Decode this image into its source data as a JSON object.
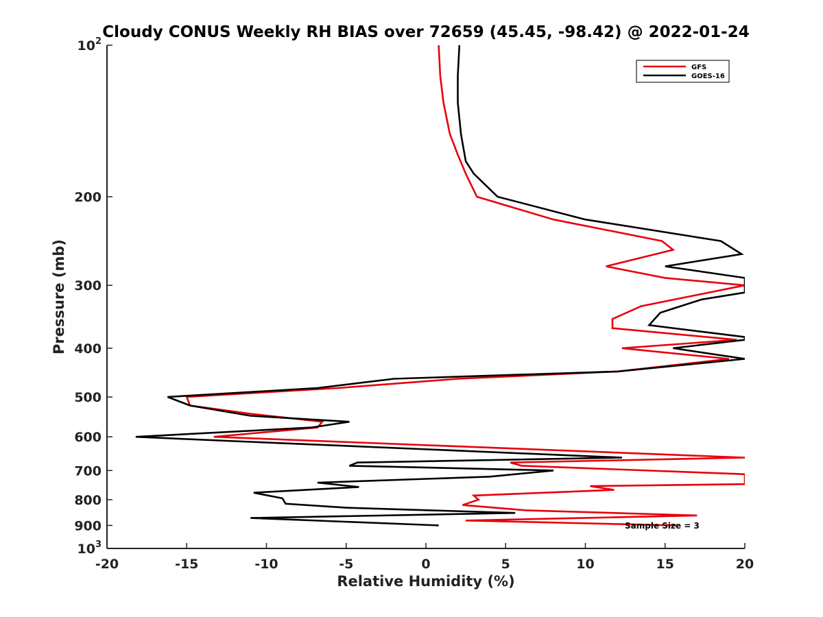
{
  "chart_data": {
    "type": "line",
    "title": "Cloudy CONUS Weekly RH BIAS over 72659 (45.45, -98.42) @ 2022-01-24",
    "xlabel": "Relative Humidity (%)",
    "ylabel": "Pressure (mb)",
    "xlim": [
      -20,
      20
    ],
    "ylim": [
      100,
      1000
    ],
    "y_scale": "log",
    "y_reversed": true,
    "x_ticks": [
      "-20",
      "-15",
      "-10",
      "-5",
      "0",
      "5",
      "10",
      "15",
      "20"
    ],
    "y_ticks": [
      {
        "value": 100,
        "base": "10",
        "exp": "2"
      },
      {
        "value": 200,
        "label": "200"
      },
      {
        "value": 300,
        "label": "300"
      },
      {
        "value": 400,
        "label": "400"
      },
      {
        "value": 500,
        "label": "500"
      },
      {
        "value": 600,
        "label": "600"
      },
      {
        "value": 700,
        "label": "700"
      },
      {
        "value": 800,
        "label": "800"
      },
      {
        "value": 900,
        "label": "900"
      },
      {
        "value": 1000,
        "base": "10",
        "exp": "3"
      }
    ],
    "grid": false,
    "legend_position": "top-right",
    "annotation": "Sample Size = 3",
    "series": [
      {
        "name": "GFS",
        "color": "#e8000b",
        "points": [
          [
            0.8,
            100
          ],
          [
            0.9,
            115
          ],
          [
            1.1,
            130
          ],
          [
            1.5,
            150
          ],
          [
            2.0,
            165
          ],
          [
            2.5,
            180
          ],
          [
            3.2,
            200
          ],
          [
            8.0,
            222
          ],
          [
            14.8,
            245
          ],
          [
            15.5,
            255
          ],
          [
            11.3,
            275
          ],
          [
            15.0,
            290
          ],
          [
            20,
            300
          ],
          [
            13.5,
            330
          ],
          [
            11.7,
            350
          ],
          [
            11.7,
            365
          ],
          [
            19.5,
            385
          ],
          [
            12.3,
            400
          ],
          [
            19.0,
            420
          ],
          [
            12.0,
            445
          ],
          [
            2.0,
            460
          ],
          [
            -5.5,
            480
          ],
          [
            -15.0,
            500
          ],
          [
            -14.8,
            520
          ],
          [
            -11.0,
            540
          ],
          [
            -6.5,
            560
          ],
          [
            -6.8,
            575
          ],
          [
            -13.3,
            600
          ],
          [
            20,
            660
          ],
          [
            5.3,
            675
          ],
          [
            6.0,
            685
          ],
          [
            20,
            712
          ],
          [
            20,
            745
          ],
          [
            10.3,
            752
          ],
          [
            11.8,
            765
          ],
          [
            3.0,
            785
          ],
          [
            3.3,
            800
          ],
          [
            2.3,
            820
          ],
          [
            6.3,
            840
          ],
          [
            17.0,
            860
          ],
          [
            2.5,
            880
          ],
          [
            15.7,
            900
          ]
        ]
      },
      {
        "name": "GOES-16",
        "color": "#000000",
        "points": [
          [
            2.1,
            100
          ],
          [
            2.0,
            115
          ],
          [
            2.0,
            130
          ],
          [
            2.2,
            150
          ],
          [
            2.5,
            170
          ],
          [
            3.0,
            180
          ],
          [
            4.5,
            200
          ],
          [
            10.0,
            222
          ],
          [
            18.5,
            245
          ],
          [
            19.8,
            260
          ],
          [
            15.0,
            275
          ],
          [
            20,
            290
          ],
          [
            20,
            310
          ],
          [
            17.3,
            320
          ],
          [
            14.7,
            340
          ],
          [
            14.0,
            360
          ],
          [
            20,
            380
          ],
          [
            20,
            385
          ],
          [
            15.5,
            400
          ],
          [
            20,
            420
          ],
          [
            12.0,
            445
          ],
          [
            -2.0,
            460
          ],
          [
            -6.8,
            480
          ],
          [
            -16.2,
            500
          ],
          [
            -14.8,
            520
          ],
          [
            -11.0,
            545
          ],
          [
            -4.8,
            560
          ],
          [
            -7.2,
            575
          ],
          [
            -18.2,
            600
          ],
          [
            -10.5,
            615
          ],
          [
            12.3,
            660
          ],
          [
            -4.3,
            675
          ],
          [
            -4.8,
            685
          ],
          [
            8.0,
            700
          ],
          [
            4.0,
            720
          ],
          [
            -6.8,
            740
          ],
          [
            -4.2,
            755
          ],
          [
            -10.8,
            775
          ],
          [
            -9.0,
            795
          ],
          [
            -8.8,
            815
          ],
          [
            -5.0,
            830
          ],
          [
            5.6,
            850
          ],
          [
            -11.0,
            870
          ],
          [
            0.8,
            900
          ]
        ]
      }
    ]
  }
}
